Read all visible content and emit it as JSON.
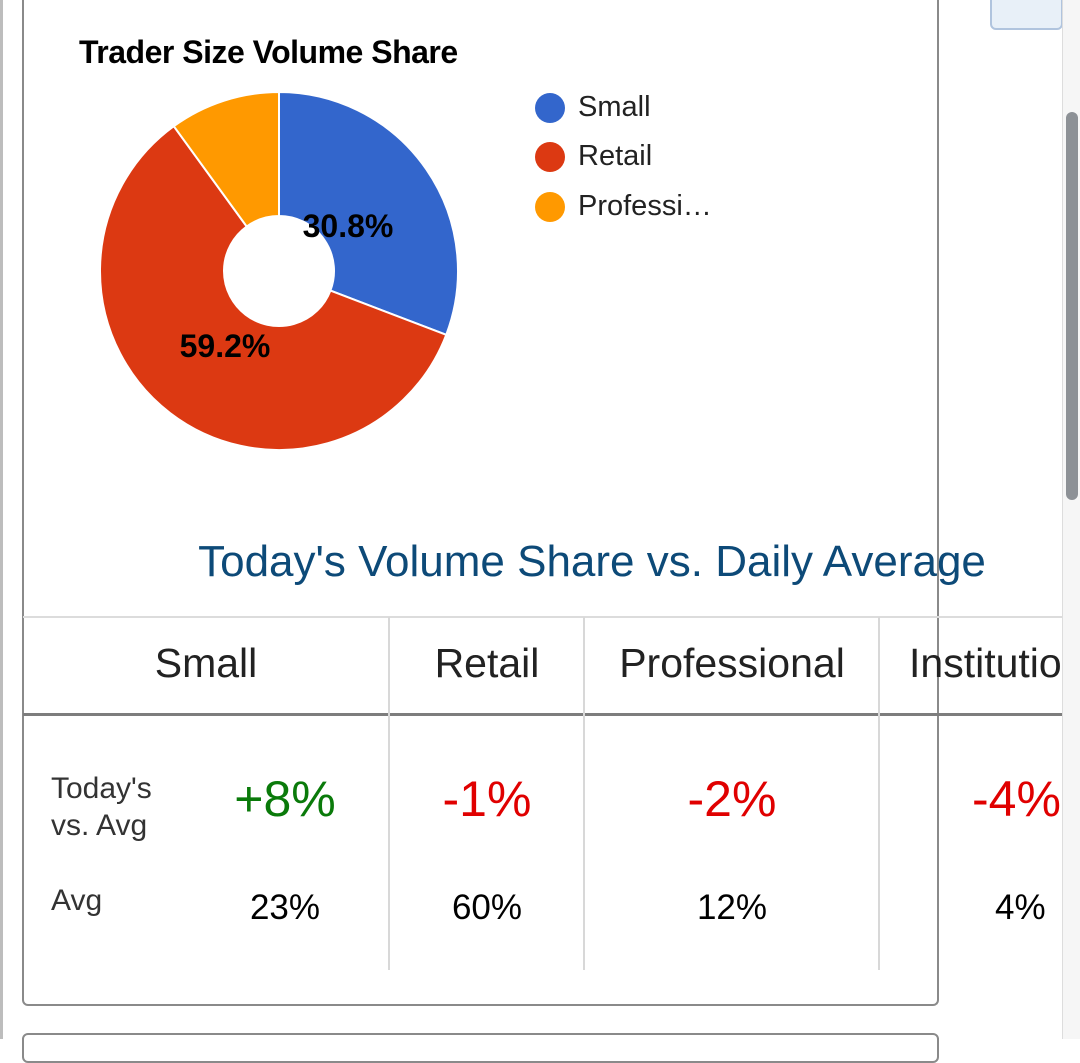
{
  "chart_data": {
    "type": "pie",
    "donut": true,
    "title": "Trader Size Volume Share",
    "categories": [
      "Small",
      "Retail",
      "Professional"
    ],
    "legend_labels": [
      "Small",
      "Retail",
      "Professi…"
    ],
    "values": [
      30.8,
      59.2,
      10.0
    ],
    "data_labels": [
      "30.8%",
      "59.2%",
      ""
    ],
    "colors": [
      "#3366cc",
      "#dc3912",
      "#ff9900"
    ],
    "legend_position": "right"
  },
  "table": {
    "title": "Today's Volume Share vs. Daily Average",
    "columns": [
      "Small",
      "Retail",
      "Professional",
      "Institutio"
    ],
    "row_labels": {
      "today_line1": "Today's",
      "today_line2": "vs. Avg",
      "avg": "Avg"
    },
    "today_vs_avg": [
      "+8%",
      "-1%",
      "-2%",
      "-4%"
    ],
    "avg": [
      "23%",
      "60%",
      "12%",
      "4%"
    ],
    "colors": {
      "positive": "#0a7a0a",
      "negative": "#e00000"
    }
  }
}
